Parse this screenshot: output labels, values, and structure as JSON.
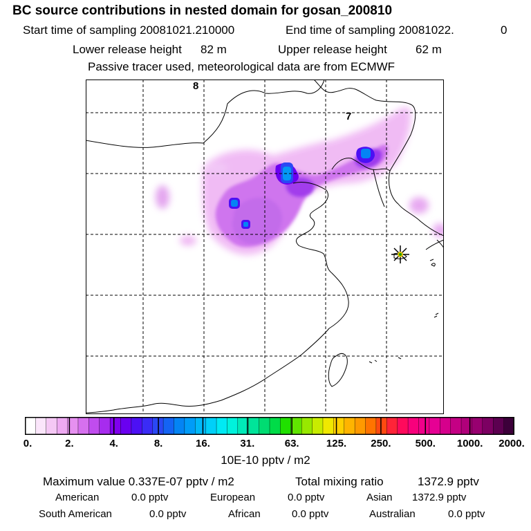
{
  "header": {
    "title": "BC  source contributions in nested domain for gosan_200810",
    "start_label": "Start time of sampling 20081021.210000",
    "end_label": "End time of sampling 20081022.",
    "end_value": "0",
    "lower_label": "Lower release height",
    "lower_value": "82 m",
    "upper_label": "Upper release height",
    "upper_value": "62 m",
    "tracer_note": "Passive tracer used, meteorological data are from ECMWF"
  },
  "map": {
    "grid_labels": [
      "8",
      "7"
    ],
    "receptor_marker": "star-icon"
  },
  "colorbar": {
    "tick_labels": [
      "0.",
      "2.",
      "4.",
      "8.",
      "16.",
      "31.",
      "63.",
      "125.",
      "250.",
      "500.",
      "1000.",
      "2000."
    ],
    "unit": "10E-10 pptv / m2",
    "colors": [
      "#ffffff",
      "#fbe6fb",
      "#f5c8f5",
      "#eeaaf2",
      "#e690f0",
      "#d670ee",
      "#c04cee",
      "#a72cee",
      "#8000ee",
      "#6a00f0",
      "#4c10f4",
      "#3a2cf6",
      "#2a48f4",
      "#1464f4",
      "#0484f4",
      "#009cf8",
      "#00b8f8",
      "#00d0f8",
      "#00eaf4",
      "#00f2dc",
      "#00eab8",
      "#00e49a",
      "#00dc72",
      "#00dc48",
      "#20e000",
      "#60e400",
      "#98e800",
      "#c8ec00",
      "#f0e800",
      "#ffd000",
      "#ffb400",
      "#ff9a00",
      "#ff7400",
      "#ff4a10",
      "#ff2438",
      "#ff0a5c",
      "#f8007c",
      "#f0008a",
      "#e60094",
      "#d6008c",
      "#c40084",
      "#b0007a",
      "#980070",
      "#7c0062",
      "#5c0050",
      "#3c003a"
    ]
  },
  "stats": {
    "max_label": "Maximum value  0.337E-07 pptv / m2",
    "total_label": "Total mixing ratio",
    "total_value": "1372.9 pptv",
    "regions": [
      {
        "name": "American",
        "value": "0.0 pptv"
      },
      {
        "name": "European",
        "value": "0.0 pptv"
      },
      {
        "name": "Asian",
        "value": "1372.9 pptv"
      },
      {
        "name": "South American",
        "value": "0.0 pptv"
      },
      {
        "name": "African",
        "value": "0.0 pptv"
      },
      {
        "name": "Australian",
        "value": "0.0 pptv"
      }
    ]
  }
}
